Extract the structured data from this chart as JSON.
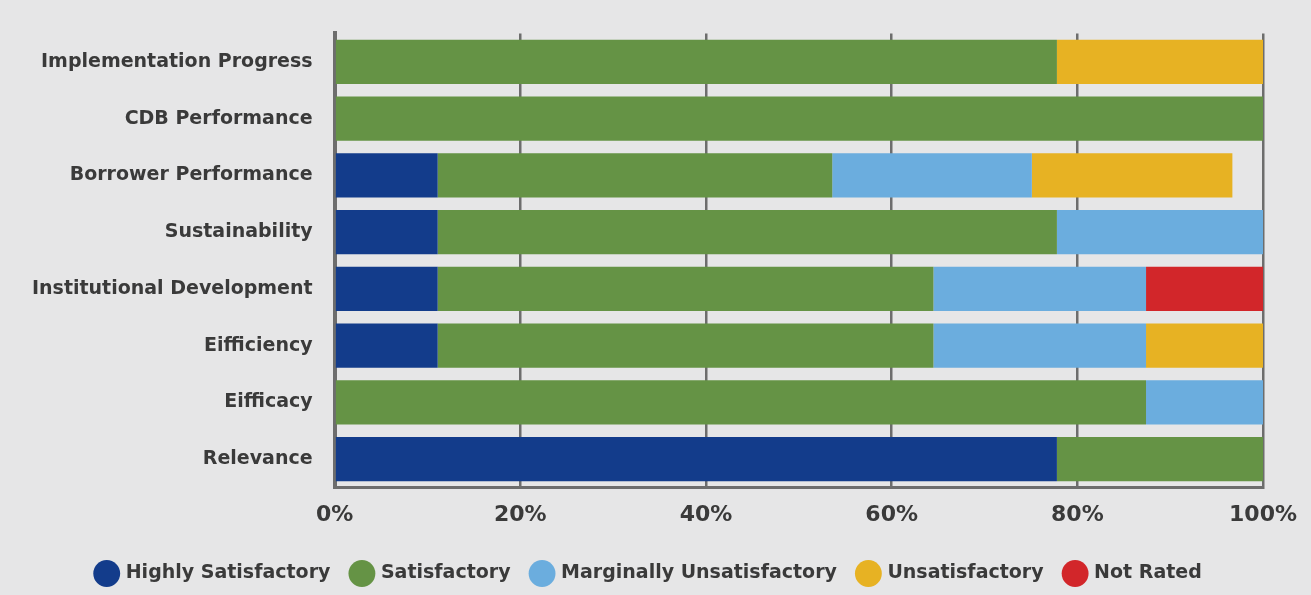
{
  "chart_data": {
    "type": "bar",
    "orientation": "horizontal",
    "stacked": true,
    "categories": [
      "Implementation Progress",
      "CDB Performance",
      "Borrower Performance",
      "Sustainability",
      "Institutional Development",
      "Eifficiency",
      "Eifficacy",
      "Relevance"
    ],
    "series": [
      {
        "name": "Highly Satisfactory",
        "color": "#133c8b",
        "values": [
          null,
          null,
          11.1,
          11.1,
          11.1,
          11.1,
          null,
          77.8
        ]
      },
      {
        "name": "Satisfactory",
        "color": "#659345",
        "values": [
          77.8,
          100,
          42.5,
          66.7,
          53.4,
          53.4,
          87.4,
          22.2
        ]
      },
      {
        "name": "Marginally Unsatisfactory",
        "color": "#6badde",
        "values": [
          null,
          null,
          21.5,
          22.2,
          22.9,
          22.9,
          12.6,
          null
        ]
      },
      {
        "name": "Unsatisfactory",
        "color": "#e7b223",
        "values": [
          22.2,
          null,
          21.6,
          null,
          null,
          12.6,
          null,
          null
        ]
      },
      {
        "name": "Not Rated",
        "color": "#d2262a",
        "values": [
          null,
          null,
          null,
          null,
          12.6,
          null,
          null,
          null
        ]
      }
    ],
    "xlim": [
      0,
      100
    ],
    "xticks": [
      {
        "value": 0,
        "label": "0%"
      },
      {
        "value": 20,
        "label": "20%"
      },
      {
        "value": 40,
        "label": "40%"
      },
      {
        "value": 60,
        "label": "60%"
      },
      {
        "value": 80,
        "label": "80%"
      },
      {
        "value": 100,
        "label": "100%"
      }
    ],
    "grid": "x",
    "legend": "bottom"
  }
}
